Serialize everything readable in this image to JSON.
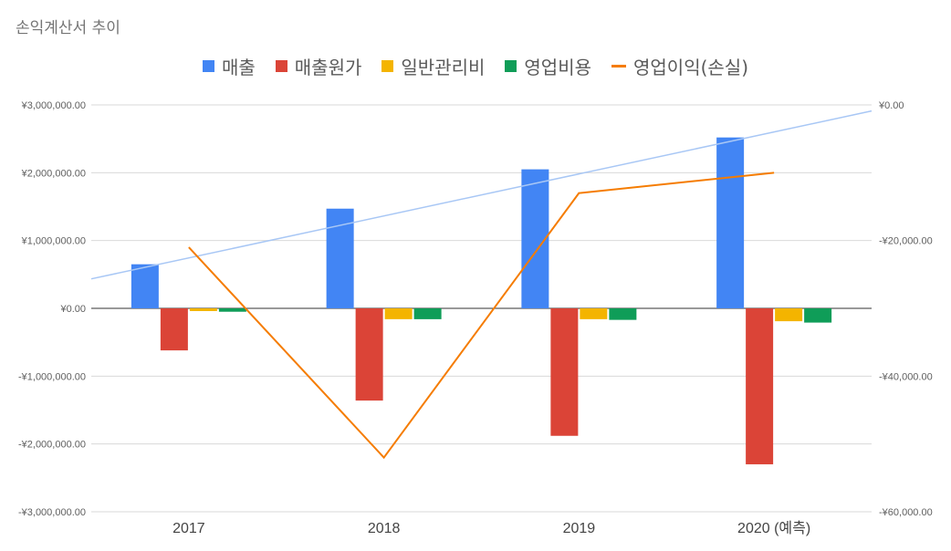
{
  "chart_data": {
    "type": "bar",
    "title": "손익계산서 추이",
    "categories": [
      "2017",
      "2018",
      "2019",
      "2020 (예측)"
    ],
    "series": [
      {
        "name": "매출",
        "axis": "left",
        "type": "bar",
        "color": "#4285f4",
        "values": [
          650000,
          1470000,
          2050000,
          2520000
        ]
      },
      {
        "name": "매출원가",
        "axis": "left",
        "type": "bar",
        "color": "#db4437",
        "values": [
          -620000,
          -1360000,
          -1880000,
          -2300000
        ]
      },
      {
        "name": "일반관리비",
        "axis": "left",
        "type": "bar",
        "color": "#f4b400",
        "values": [
          -40000,
          -160000,
          -160000,
          -190000
        ]
      },
      {
        "name": "영업비용",
        "axis": "left",
        "type": "bar",
        "color": "#0f9d58",
        "values": [
          -50000,
          -160000,
          -170000,
          -210000
        ]
      },
      {
        "name": "영업이익(손실)",
        "axis": "right",
        "type": "line",
        "color": "#f57c00",
        "values": [
          -21000,
          -52000,
          -13000,
          -10000
        ]
      }
    ],
    "trendline": {
      "series": "매출",
      "color": "#a8c7f5"
    },
    "y_left": {
      "ylim": [
        -3000000,
        3000000
      ],
      "ticks": [
        "¥3,000,000.00",
        "¥2,000,000.00",
        "¥1,000,000.00",
        "¥0.00",
        "-¥1,000,000.00",
        "-¥2,000,000.00",
        "-¥3,000,000.00"
      ]
    },
    "y_right": {
      "ylim": [
        -60000,
        0
      ],
      "ticks": [
        "¥0.00",
        "-¥20,000.00",
        "-¥40,000.00",
        "-¥60,000.00"
      ]
    },
    "legend_position": "top",
    "grid": true
  }
}
